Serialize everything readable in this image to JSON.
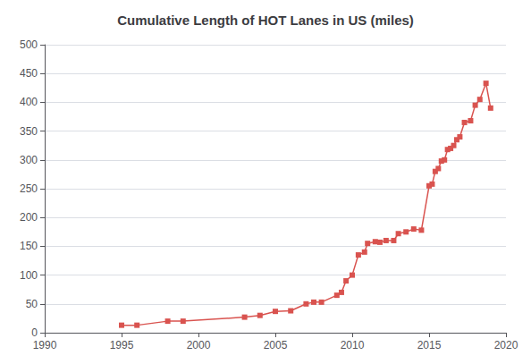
{
  "chart_data": {
    "type": "line",
    "title": "Cumulative Length of HOT Lanes in US (miles)",
    "x": [
      1995,
      1996,
      1998,
      1999,
      2003,
      2004,
      2005,
      2006,
      2007,
      2007.5,
      2008,
      2009,
      2009.3,
      2009.6,
      2010,
      2010.4,
      2010.8,
      2011,
      2011.5,
      2011.8,
      2012.2,
      2012.7,
      2013,
      2013.5,
      2014,
      2014.5,
      2015,
      2015.2,
      2015.4,
      2015.6,
      2015.8,
      2016.0,
      2016.2,
      2016.4,
      2016.6,
      2016.8,
      2017.0,
      2017.3,
      2017.7,
      2018.0,
      2018.3,
      2018.7,
      2019.0
    ],
    "values": [
      13,
      13,
      20,
      20,
      27,
      30,
      37,
      38,
      50,
      53,
      53,
      65,
      70,
      90,
      100,
      135,
      140,
      155,
      158,
      157,
      160,
      160,
      172,
      175,
      180,
      178,
      255,
      258,
      280,
      285,
      298,
      300,
      318,
      320,
      325,
      335,
      340,
      365,
      368,
      395,
      405,
      433,
      390
    ],
    "color": "#d9534f",
    "marker": "square",
    "xlim": [
      1990,
      2020
    ],
    "xticks": [
      1990,
      1995,
      2000,
      2005,
      2010,
      2015,
      2020
    ],
    "ylim": [
      0,
      500
    ],
    "yticks": [
      0,
      50,
      100,
      150,
      200,
      250,
      300,
      350,
      400,
      450,
      500
    ],
    "grid": true
  }
}
